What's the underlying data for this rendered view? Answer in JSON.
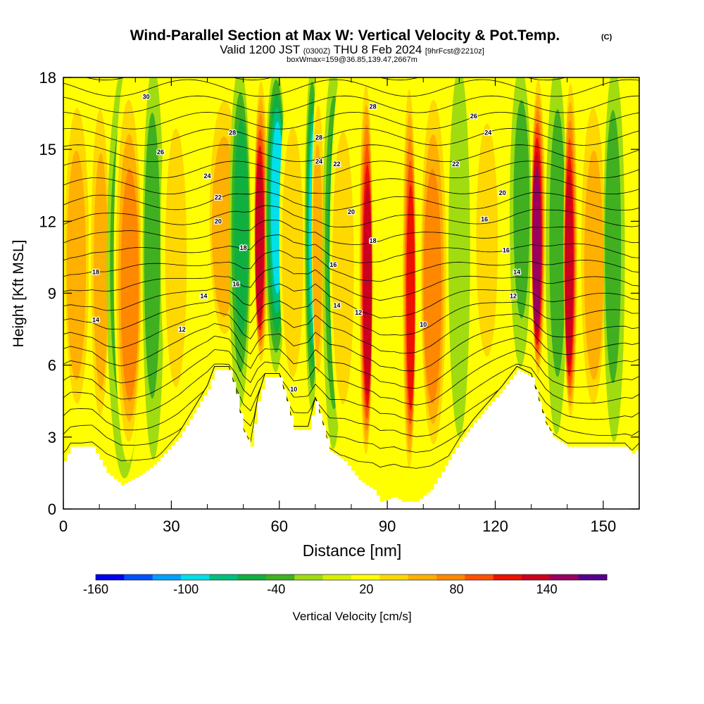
{
  "chart_data": {
    "type": "heatmap",
    "title": "Wind-Parallel Section at Max W: Vertical Velocity & Pot.Temp.",
    "copyright": "(C)",
    "subtitle_main": "Valid 1200 JST",
    "subtitle_utc": "(0300Z)",
    "subtitle_date": "THU 8 Feb 2024",
    "subtitle_fcst": "[9hrFcst@2210z]",
    "subtitle_box": "boxWmax=159@36.85,139.47,2667m",
    "xlabel": "Distance [nm]",
    "ylabel": "Height [Kft MSL]",
    "xlim": [
      0,
      160
    ],
    "ylim": [
      0,
      18
    ],
    "x_ticks": [
      "0",
      "30",
      "60",
      "90",
      "120",
      "150"
    ],
    "x_tick_values": [
      0,
      30,
      60,
      90,
      120,
      150
    ],
    "y_ticks": [
      "0",
      "3",
      "6",
      "9",
      "12",
      "15",
      "18"
    ],
    "y_tick_values": [
      0,
      3,
      6,
      9,
      12,
      15,
      18
    ],
    "colorbar": {
      "label": "Vertical Velocity [cm/s]",
      "ticks": [
        "-160",
        "-100",
        "-40",
        "20",
        "80",
        "140"
      ],
      "tick_values": [
        -160,
        -100,
        -40,
        20,
        80,
        140
      ],
      "range": [
        -160,
        180
      ],
      "colors": [
        "#0000ee",
        "#0050ff",
        "#00a0ff",
        "#00e0e8",
        "#00c080",
        "#10b040",
        "#40b020",
        "#a0dc10",
        "#d8f000",
        "#ffff00",
        "#ffd800",
        "#ffb000",
        "#ff8800",
        "#ff5000",
        "#ee1000",
        "#cc0020",
        "#990060",
        "#550090"
      ]
    },
    "terrain_kft": [
      [
        0,
        2.0
      ],
      [
        2,
        2.6
      ],
      [
        8,
        2.6
      ],
      [
        12,
        1.5
      ],
      [
        16,
        1.0
      ],
      [
        20,
        1.3
      ],
      [
        24,
        1.7
      ],
      [
        28,
        2.3
      ],
      [
        32,
        3.0
      ],
      [
        36,
        4.0
      ],
      [
        40,
        5.0
      ],
      [
        42,
        5.8
      ],
      [
        46,
        5.8
      ],
      [
        48,
        4.8
      ],
      [
        50,
        3.2
      ],
      [
        52,
        2.6
      ],
      [
        54,
        4.5
      ],
      [
        56,
        5.5
      ],
      [
        60,
        5.5
      ],
      [
        62,
        4.5
      ],
      [
        64,
        3.3
      ],
      [
        68,
        3.3
      ],
      [
        70,
        4.5
      ],
      [
        72,
        3.5
      ],
      [
        74,
        2.4
      ],
      [
        78,
        2.0
      ],
      [
        82,
        1.2
      ],
      [
        86,
        0.8
      ],
      [
        88,
        0.3
      ],
      [
        92,
        0.5
      ],
      [
        94,
        0.3
      ],
      [
        98,
        0.3
      ],
      [
        102,
        0.8
      ],
      [
        106,
        1.8
      ],
      [
        110,
        2.8
      ],
      [
        114,
        3.6
      ],
      [
        118,
        4.3
      ],
      [
        122,
        5.0
      ],
      [
        126,
        5.8
      ],
      [
        130,
        5.5
      ],
      [
        134,
        3.5
      ],
      [
        136,
        3.0
      ],
      [
        140,
        2.6
      ],
      [
        146,
        2.6
      ],
      [
        152,
        2.6
      ],
      [
        156,
        2.6
      ],
      [
        158,
        2.3
      ],
      [
        160,
        2.6
      ]
    ],
    "velocity_bands": [
      {
        "x": 4,
        "w": 4,
        "v": 60
      },
      {
        "x": 10,
        "w": 3,
        "v": 70
      },
      {
        "x": 17,
        "w": 5,
        "v": -40
      },
      {
        "x": 18,
        "w": 4,
        "v": 90
      },
      {
        "x": 25,
        "w": 3,
        "v": -40
      },
      {
        "x": 31,
        "w": 4,
        "v": 40
      },
      {
        "x": 45,
        "w": 5,
        "v": 60
      },
      {
        "x": 49,
        "w": 3,
        "v": -60
      },
      {
        "x": 55,
        "w": 2,
        "v": 150
      },
      {
        "x": 59,
        "w": 3,
        "v": -100
      },
      {
        "x": 64,
        "w": 4,
        "v": 50
      },
      {
        "x": 69,
        "w": 2,
        "v": -100
      },
      {
        "x": 71,
        "w": 2,
        "v": 60
      },
      {
        "x": 75,
        "w": 3,
        "v": -70
      },
      {
        "x": 78,
        "w": 4,
        "v": 40
      },
      {
        "x": 84,
        "w": 2,
        "v": 150
      },
      {
        "x": 91,
        "w": 3,
        "v": 0
      },
      {
        "x": 96,
        "w": 2,
        "v": 120
      },
      {
        "x": 103,
        "w": 4,
        "v": 90
      },
      {
        "x": 110,
        "w": 3,
        "v": -20
      },
      {
        "x": 118,
        "w": 4,
        "v": 40
      },
      {
        "x": 127,
        "w": 3,
        "v": -40
      },
      {
        "x": 132,
        "w": 2,
        "v": 160
      },
      {
        "x": 137,
        "w": 3,
        "v": -40
      },
      {
        "x": 141,
        "w": 2,
        "v": 150
      },
      {
        "x": 147,
        "w": 4,
        "v": 60
      },
      {
        "x": 153,
        "w": 3,
        "v": -50
      }
    ],
    "contour_labels": [
      {
        "text": "30",
        "x": 23,
        "y": 17.1
      },
      {
        "text": "28",
        "x": 47,
        "y": 15.6
      },
      {
        "text": "26",
        "x": 27,
        "y": 14.8
      },
      {
        "text": "24",
        "x": 40,
        "y": 13.8
      },
      {
        "text": "22",
        "x": 43,
        "y": 12.9
      },
      {
        "text": "20",
        "x": 43,
        "y": 11.9
      },
      {
        "text": "18",
        "x": 50,
        "y": 10.8
      },
      {
        "text": "16",
        "x": 48,
        "y": 9.3
      },
      {
        "text": "14",
        "x": 39,
        "y": 8.8
      },
      {
        "text": "12",
        "x": 33,
        "y": 7.4
      },
      {
        "text": "18",
        "x": 9,
        "y": 9.8
      },
      {
        "text": "14",
        "x": 9,
        "y": 7.8
      },
      {
        "text": "10",
        "x": 64,
        "y": 4.9
      },
      {
        "text": "28",
        "x": 86,
        "y": 16.7
      },
      {
        "text": "28",
        "x": 71,
        "y": 15.4
      },
      {
        "text": "24",
        "x": 71,
        "y": 14.4
      },
      {
        "text": "22",
        "x": 76,
        "y": 14.3
      },
      {
        "text": "20",
        "x": 80,
        "y": 12.3
      },
      {
        "text": "18",
        "x": 86,
        "y": 11.1
      },
      {
        "text": "16",
        "x": 75,
        "y": 10.1
      },
      {
        "text": "14",
        "x": 76,
        "y": 8.4
      },
      {
        "text": "12",
        "x": 82,
        "y": 8.1
      },
      {
        "text": "10",
        "x": 100,
        "y": 7.6
      },
      {
        "text": "26",
        "x": 114,
        "y": 16.3
      },
      {
        "text": "24",
        "x": 118,
        "y": 15.6
      },
      {
        "text": "22",
        "x": 109,
        "y": 14.3
      },
      {
        "text": "20",
        "x": 122,
        "y": 13.1
      },
      {
        "text": "16",
        "x": 117,
        "y": 12.0
      },
      {
        "text": "16",
        "x": 123,
        "y": 10.7
      },
      {
        "text": "14",
        "x": 126,
        "y": 9.8
      },
      {
        "text": "12",
        "x": 125,
        "y": 8.8
      }
    ],
    "theta_levels": [
      10,
      12,
      14,
      16,
      18,
      20,
      22,
      24,
      26,
      28,
      30,
      32,
      34,
      36,
      38,
      40,
      42,
      44,
      46,
      48,
      50,
      52,
      54,
      56
    ]
  }
}
